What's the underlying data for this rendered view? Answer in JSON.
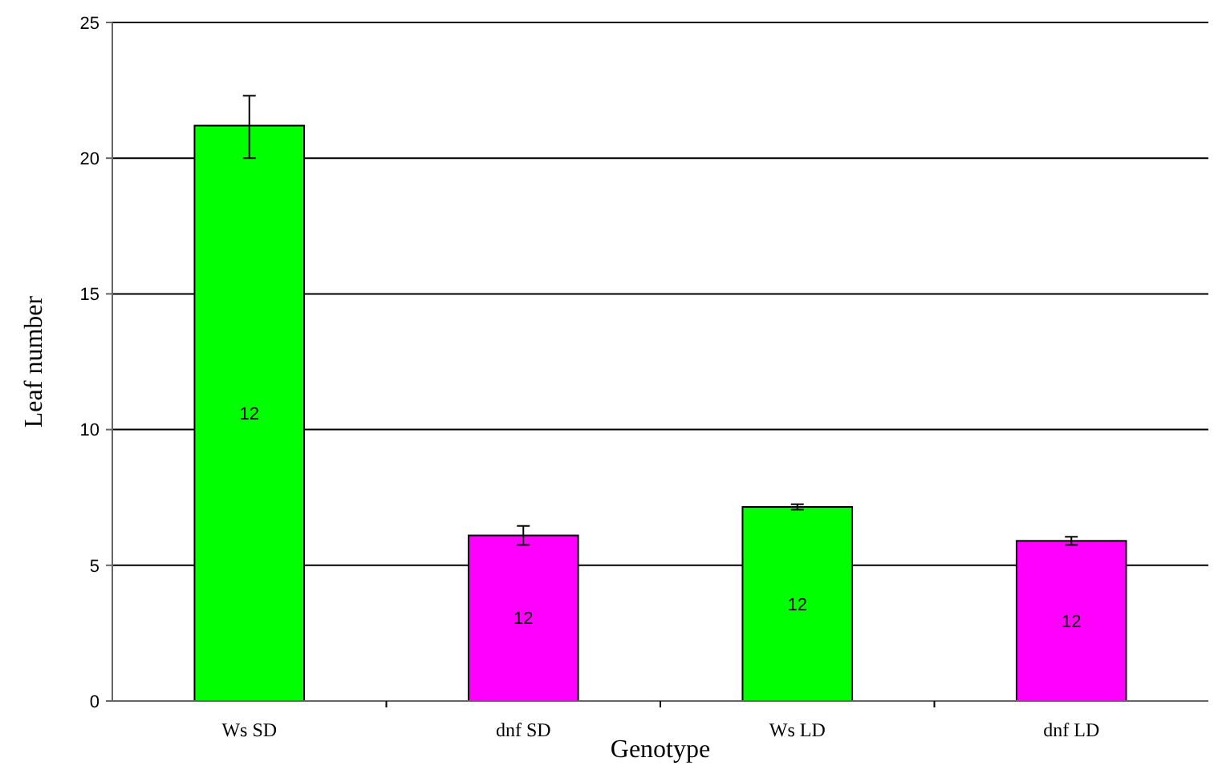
{
  "chart_data": {
    "type": "bar",
    "xlabel": "Genotype",
    "ylabel": "Leaf number",
    "categories": [
      "Ws SD",
      "dnf SD",
      "Ws LD",
      "dnf LD"
    ],
    "values": [
      21.2,
      6.1,
      7.15,
      5.9
    ],
    "colors": [
      "#00ff00",
      "#ff00ff",
      "#00ff00",
      "#ff00ff"
    ],
    "errors": [
      [
        20.0,
        22.3
      ],
      0.35,
      0.1,
      0.15
    ],
    "ylim": [
      0,
      25
    ],
    "yticks": [
      0,
      5,
      10,
      15,
      20,
      25
    ],
    "grid": "y",
    "annotations": [
      "12",
      "12",
      "12",
      "12"
    ]
  }
}
